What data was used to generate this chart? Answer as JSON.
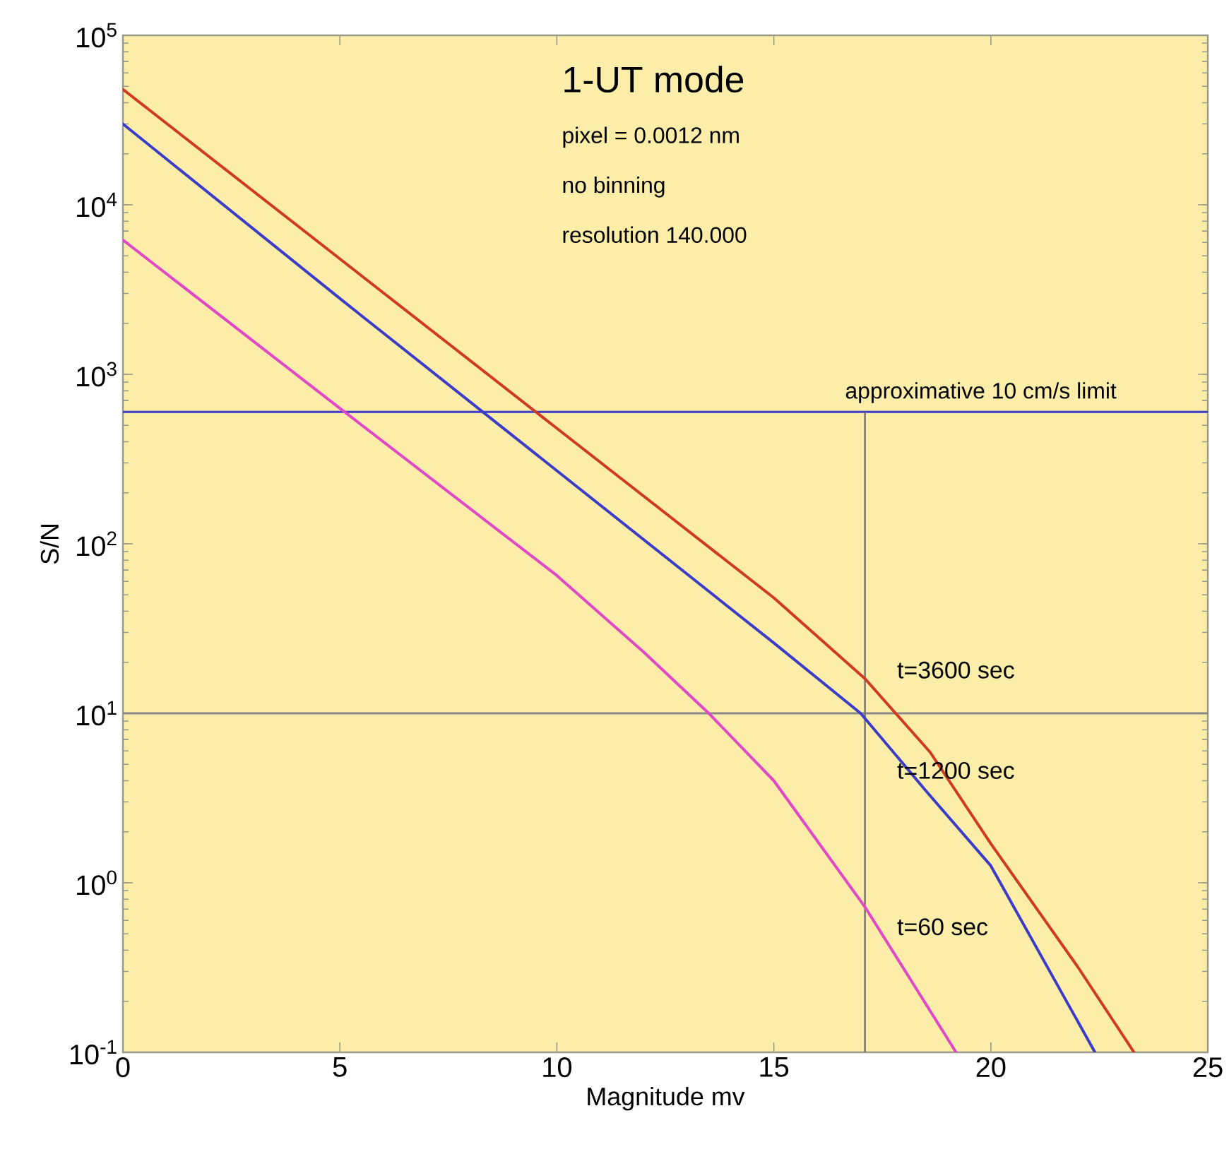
{
  "chart_data": {
    "type": "line",
    "title": "1-UT mode",
    "annotations": [
      "pixel = 0.0012 nm",
      "no binning",
      "resolution 140.000"
    ],
    "xlabel": "Magnitude mv",
    "ylabel": "S/N",
    "log": "y",
    "grid": false,
    "marker": "none",
    "line_style": "solid",
    "xlim": [
      0,
      25
    ],
    "xticks": [
      0,
      5,
      10,
      15,
      20,
      25
    ],
    "ylim": [
      0.1,
      100000
    ],
    "yticks": [
      {
        "value": 0.1,
        "label": "10$^{-1}$"
      },
      {
        "value": 1,
        "label": "10$^{0}$"
      },
      {
        "value": 10,
        "label": "10$^{1}$"
      },
      {
        "value": 100,
        "label": "10$^{2}$"
      },
      {
        "value": 1000,
        "label": "10$^{3}$"
      },
      {
        "value": 10000,
        "label": "10$^{4}$"
      },
      {
        "value": 100000,
        "label": "10$^{5}$"
      }
    ],
    "series": [
      {
        "name": "t=3600 sec",
        "color": "#d03a20",
        "x": [
          0,
          5,
          10,
          15,
          17.1,
          18.6,
          20,
          22,
          23.3
        ],
        "values": [
          48000,
          4800,
          480,
          48,
          16,
          5.9,
          1.7,
          0.32,
          0.1
        ]
      },
      {
        "name": "t=1200 sec",
        "color": "#3c3cc8",
        "x": [
          0,
          5,
          10,
          15,
          17,
          18.5,
          20,
          22.4
        ],
        "values": [
          30000,
          2800,
          270,
          26,
          10,
          3.5,
          1.26,
          0.1
        ]
      },
      {
        "name": "t=60 sec",
        "color": "#e048c8",
        "x": [
          0,
          5,
          10,
          12,
          13.5,
          15,
          17.1,
          19.2
        ],
        "values": [
          6200,
          630,
          65,
          23,
          10,
          4,
          0.72,
          0.1
        ]
      }
    ],
    "ref_lines": [
      {
        "axis": "y",
        "value": 600,
        "label": "approximative 10 cm/s limit",
        "color": "#3a3ac8"
      },
      {
        "axis": "y",
        "value": 10,
        "color": "#8a8a8a"
      },
      {
        "axis": "x",
        "value": 17.1,
        "color": "#707070"
      }
    ]
  }
}
